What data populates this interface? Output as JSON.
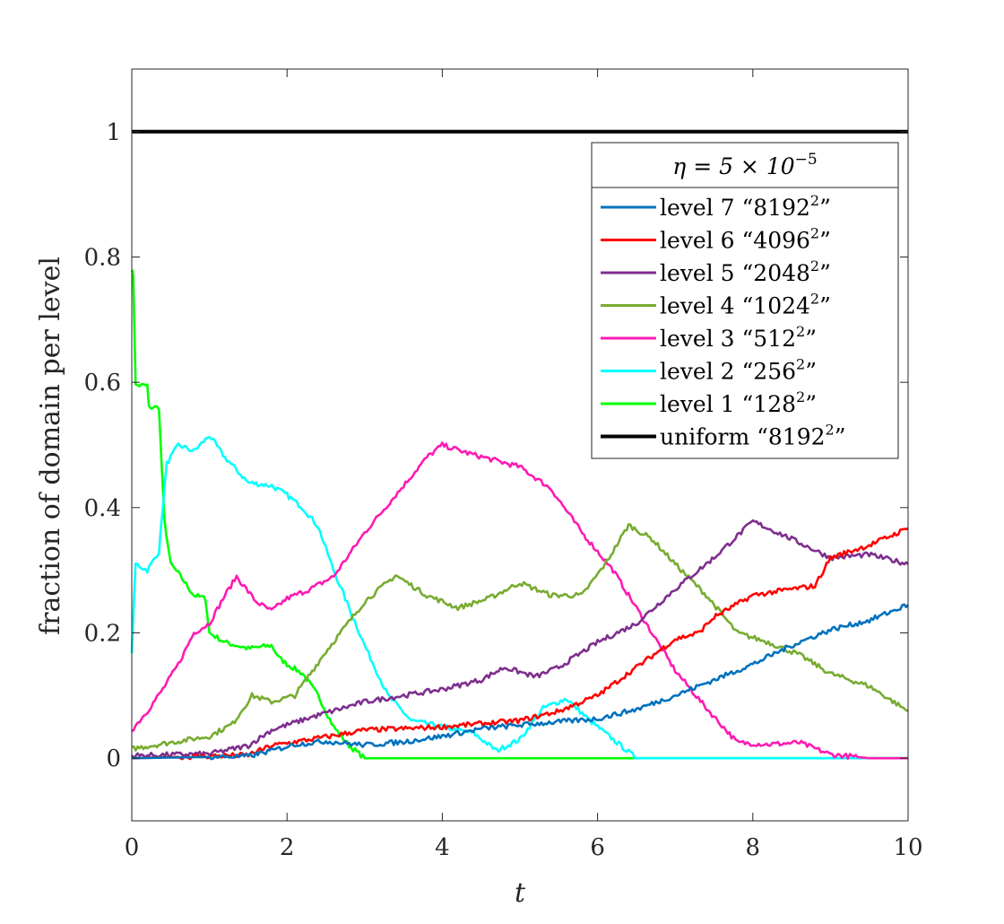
{
  "chart_data": {
    "type": "line",
    "xlabel": "t",
    "ylabel": "fraction of domain per level",
    "xlim": [
      0,
      10
    ],
    "ylim": [
      -0.1,
      1.1
    ],
    "xticks": [
      0,
      2,
      4,
      6,
      8,
      10
    ],
    "yticks": [
      0,
      0.2,
      0.4,
      0.6,
      0.8,
      1
    ],
    "xtick_labels": [
      "0",
      "2",
      "4",
      "6",
      "8",
      "10"
    ],
    "ytick_labels": [
      "0",
      "0.2",
      "0.4",
      "0.6",
      "0.8",
      "1"
    ],
    "grid": false,
    "legend": {
      "placement": "top-right",
      "title": "η = 5 × 10",
      "title_superscript": "−5"
    },
    "series": [
      {
        "name": "level 7 “8192²”",
        "label_prefix": "level 7 “8192",
        "label_suffix": "”",
        "color": "#0072BD",
        "x": [
          0,
          1.5,
          1.8,
          2.1,
          2.5,
          3.0,
          3.5,
          4.0,
          4.5,
          5.0,
          5.5,
          6.0,
          6.5,
          7.0,
          7.5,
          8.0,
          8.5,
          9.0,
          9.5,
          10.0
        ],
        "y": [
          0,
          0.003,
          0.012,
          0.022,
          0.027,
          0.021,
          0.026,
          0.035,
          0.047,
          0.053,
          0.058,
          0.063,
          0.078,
          0.1,
          0.125,
          0.15,
          0.18,
          0.205,
          0.22,
          0.245
        ]
      },
      {
        "name": "level 6 “4096²”",
        "label_prefix": "level 6 “4096",
        "label_suffix": "”",
        "color": "#FF0000",
        "x": [
          0,
          1.5,
          1.8,
          2.2,
          2.6,
          3.0,
          3.5,
          4.0,
          4.5,
          5.0,
          5.5,
          6.0,
          6.5,
          7.0,
          7.3,
          7.5,
          8.0,
          8.5,
          8.8,
          9.0,
          9.5,
          10.0
        ],
        "y": [
          0,
          0.005,
          0.02,
          0.028,
          0.036,
          0.045,
          0.047,
          0.05,
          0.055,
          0.06,
          0.075,
          0.1,
          0.145,
          0.19,
          0.2,
          0.225,
          0.26,
          0.27,
          0.275,
          0.32,
          0.34,
          0.367
        ]
      },
      {
        "name": "level 5 “2048²”",
        "label_prefix": "level 5 “2048",
        "label_suffix": "”",
        "color": "#7E2F8E",
        "x": [
          0,
          1.0,
          1.5,
          1.8,
          2.3,
          3.0,
          3.5,
          4.0,
          4.5,
          4.8,
          5.2,
          5.5,
          6.0,
          6.5,
          7.0,
          7.5,
          8.0,
          8.5,
          9.0,
          9.5,
          10.0
        ],
        "y": [
          0.004,
          0.007,
          0.02,
          0.045,
          0.065,
          0.09,
          0.1,
          0.11,
          0.125,
          0.145,
          0.13,
          0.145,
          0.185,
          0.215,
          0.27,
          0.32,
          0.378,
          0.35,
          0.32,
          0.325,
          0.31
        ]
      },
      {
        "name": "level 4 “1024²”",
        "label_prefix": "level 4 “1024",
        "label_suffix": "”",
        "color": "#77AC30",
        "x": [
          0,
          0.5,
          1.0,
          1.3,
          1.55,
          1.8,
          2.1,
          2.5,
          3.0,
          3.4,
          3.8,
          4.2,
          4.6,
          5.0,
          5.4,
          5.8,
          6.1,
          6.4,
          6.7,
          7.0,
          7.4,
          7.8,
          8.2,
          8.6,
          9.0,
          9.5,
          10.0
        ],
        "y": [
          0.015,
          0.025,
          0.035,
          0.055,
          0.1,
          0.09,
          0.1,
          0.17,
          0.25,
          0.292,
          0.26,
          0.24,
          0.255,
          0.28,
          0.26,
          0.26,
          0.31,
          0.372,
          0.35,
          0.31,
          0.26,
          0.2,
          0.185,
          0.165,
          0.135,
          0.115,
          0.075
        ]
      },
      {
        "name": "level 3 “512²”",
        "label_prefix": "level 3 “512",
        "label_suffix": "”",
        "color": "#FF1AB3",
        "x": [
          0,
          0.2,
          0.4,
          0.6,
          0.8,
          1.0,
          1.2,
          1.35,
          1.6,
          1.8,
          2.0,
          2.3,
          2.6,
          3.0,
          3.4,
          3.8,
          4.0,
          4.3,
          4.6,
          5.0,
          5.4,
          5.8,
          6.2,
          6.6,
          7.0,
          7.4,
          7.8,
          8.2,
          8.6,
          9.0,
          9.5,
          10.0
        ],
        "y": [
          0.045,
          0.075,
          0.11,
          0.15,
          0.2,
          0.215,
          0.26,
          0.29,
          0.25,
          0.235,
          0.255,
          0.27,
          0.29,
          0.36,
          0.42,
          0.48,
          0.5,
          0.488,
          0.478,
          0.465,
          0.43,
          0.36,
          0.3,
          0.22,
          0.14,
          0.08,
          0.025,
          0.022,
          0.025,
          0.006,
          0.0,
          0.0
        ]
      },
      {
        "name": "level 2 “256²”",
        "label_prefix": "level 2 “256",
        "label_suffix": "”",
        "color": "#00FFFF",
        "x": [
          0,
          0.05,
          0.2,
          0.35,
          0.45,
          0.6,
          0.8,
          1.0,
          1.2,
          1.5,
          1.8,
          2.0,
          2.2,
          2.4,
          2.6,
          2.8,
          3.0,
          3.3,
          3.6,
          4.0,
          4.4,
          4.7,
          5.0,
          5.3,
          5.6,
          5.9,
          6.2,
          6.5,
          7.0,
          10.0
        ],
        "y": [
          0.17,
          0.31,
          0.3,
          0.33,
          0.47,
          0.5,
          0.49,
          0.515,
          0.48,
          0.44,
          0.435,
          0.42,
          0.4,
          0.37,
          0.3,
          0.24,
          0.18,
          0.1,
          0.06,
          0.05,
          0.04,
          0.012,
          0.03,
          0.08,
          0.095,
          0.06,
          0.03,
          0.0,
          0.0,
          0.0
        ]
      },
      {
        "name": "level 1 “128²”",
        "label_prefix": "level 1 “128",
        "label_suffix": "”",
        "color": "#00FF00",
        "x": [
          0,
          0.02,
          0.05,
          0.2,
          0.22,
          0.35,
          0.38,
          0.42,
          0.5,
          0.6,
          0.8,
          0.95,
          1.0,
          1.2,
          1.5,
          1.8,
          1.9,
          2.0,
          2.2,
          2.4,
          2.6,
          2.8,
          2.95,
          3.0,
          10.0
        ],
        "y": [
          0.78,
          0.77,
          0.595,
          0.595,
          0.56,
          0.56,
          0.48,
          0.38,
          0.31,
          0.295,
          0.26,
          0.255,
          0.2,
          0.185,
          0.175,
          0.18,
          0.16,
          0.15,
          0.135,
          0.1,
          0.05,
          0.02,
          0.005,
          0.0,
          0.0
        ]
      },
      {
        "name": "uniform “8192²”",
        "label_prefix": "uniform “8192",
        "label_suffix": "”",
        "color": "#000000",
        "x": [
          0,
          10
        ],
        "y": [
          1,
          1
        ]
      }
    ]
  }
}
